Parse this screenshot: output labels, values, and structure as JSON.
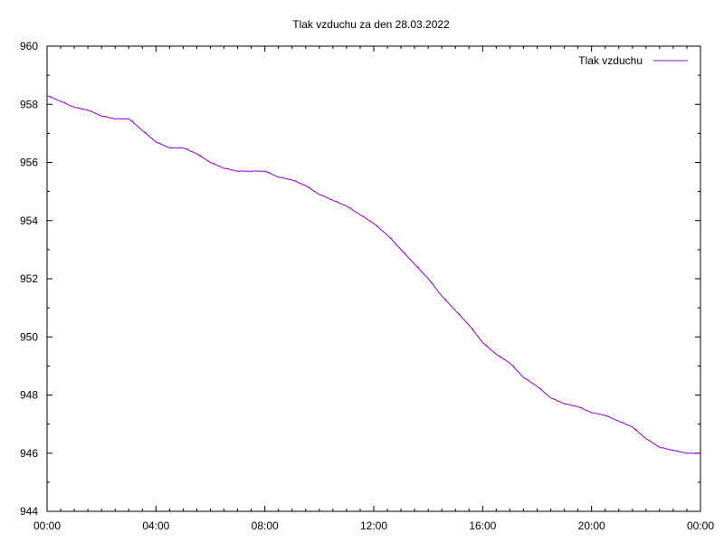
{
  "chart_data": {
    "type": "line",
    "title": "Tlak vzduchu za den 28.03.2022",
    "xlabel": "",
    "ylabel": "",
    "xlim": [
      "00:00",
      "24:00"
    ],
    "ylim": [
      944,
      960
    ],
    "x_tick_labels": [
      "00:00",
      "04:00",
      "08:00",
      "12:00",
      "16:00",
      "20:00",
      "00:00"
    ],
    "y_tick_labels": [
      "944",
      "946",
      "948",
      "950",
      "952",
      "954",
      "956",
      "958",
      "960"
    ],
    "grid": false,
    "legend_position": "top-right",
    "series": [
      {
        "name": "Tlak vzduchu",
        "color": "#9400d3",
        "x_hours": [
          0,
          0.5,
          1,
          1.5,
          2,
          2.5,
          3,
          3.5,
          4,
          4.5,
          5,
          5.5,
          6,
          6.5,
          7,
          7.5,
          8,
          8.5,
          9,
          9.5,
          10,
          10.5,
          11,
          11.5,
          12,
          12.5,
          13,
          13.5,
          14,
          14.5,
          15,
          15.5,
          16,
          16.5,
          17,
          17.5,
          18,
          18.5,
          19,
          19.5,
          20,
          20.5,
          21,
          21.5,
          22,
          22.5,
          23,
          23.5,
          24
        ],
        "values": [
          958.3,
          958.1,
          957.9,
          957.8,
          957.6,
          957.5,
          957.5,
          957.1,
          956.7,
          956.5,
          956.5,
          956.3,
          956.0,
          955.8,
          955.7,
          955.7,
          955.7,
          955.5,
          955.4,
          955.2,
          954.9,
          954.7,
          954.5,
          954.2,
          953.9,
          953.5,
          953.0,
          952.5,
          952.0,
          951.4,
          950.9,
          950.4,
          949.8,
          949.4,
          949.1,
          948.6,
          948.3,
          947.9,
          947.7,
          947.6,
          947.4,
          947.3,
          947.1,
          946.9,
          946.5,
          946.2,
          946.1,
          946.0,
          946.0
        ]
      }
    ]
  }
}
